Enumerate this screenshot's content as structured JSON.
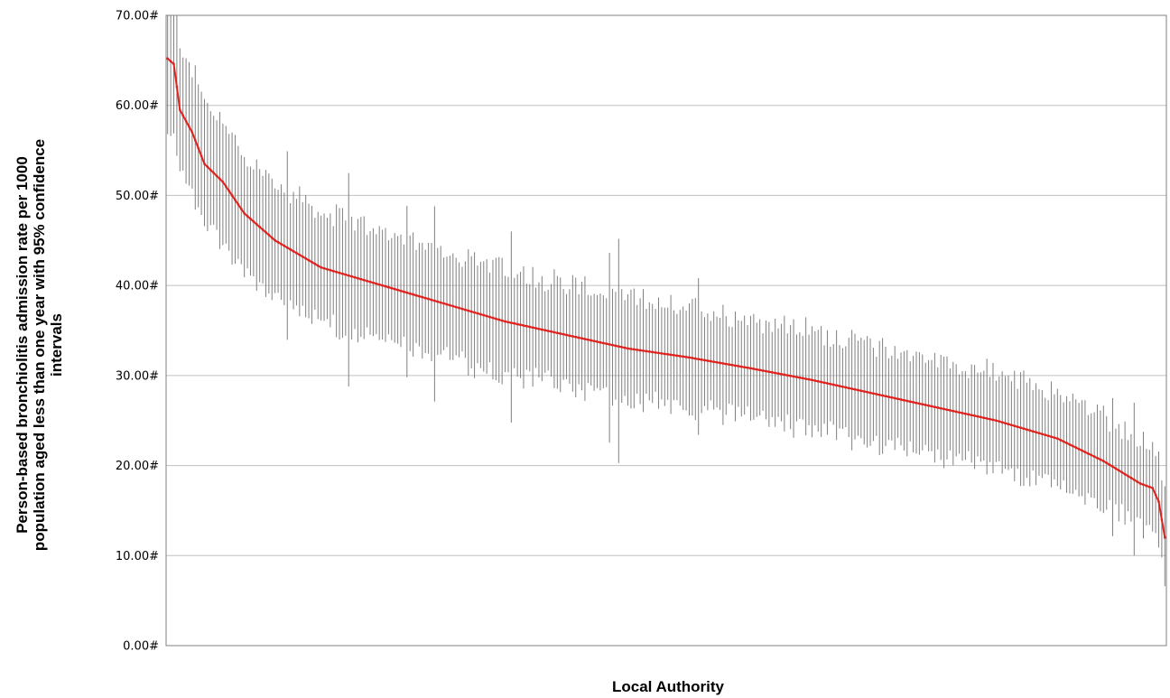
{
  "chart_data": {
    "type": "line",
    "title": "",
    "xlabel": "Local Authority",
    "ylabel_lines": [
      "Person-based bronchiolitis admission rate per 1000",
      "population aged less than one year with 95% confidence",
      "intervals"
    ],
    "ylim": [
      0,
      70
    ],
    "y_ticks": [
      {
        "value": 0,
        "label": "0.00#"
      },
      {
        "value": 10,
        "label": "10.00#"
      },
      {
        "value": 20,
        "label": "20.00#"
      },
      {
        "value": 30,
        "label": "30.00#"
      },
      {
        "value": 40,
        "label": "40.00#"
      },
      {
        "value": 50,
        "label": "50.00#"
      },
      {
        "value": 60,
        "label": "60.00#"
      },
      {
        "value": 70,
        "label": "70.00#"
      }
    ],
    "grid": true,
    "legend": "none",
    "x_tick_labels": "none",
    "n_points": 326,
    "rate_profile_knots": [
      [
        0,
        65.2
      ],
      [
        2,
        64.6
      ],
      [
        4,
        59.5
      ],
      [
        8,
        57.0
      ],
      [
        12,
        53.5
      ],
      [
        18,
        51.5
      ],
      [
        25,
        48.0
      ],
      [
        35,
        45.0
      ],
      [
        50,
        42.0
      ],
      [
        70,
        40.0
      ],
      [
        90,
        38.0
      ],
      [
        110,
        36.0
      ],
      [
        130,
        34.5
      ],
      [
        150,
        33.0
      ],
      [
        170,
        32.0
      ],
      [
        190,
        30.8
      ],
      [
        210,
        29.5
      ],
      [
        230,
        28.0
      ],
      [
        250,
        26.5
      ],
      [
        270,
        25.0
      ],
      [
        290,
        23.0
      ],
      [
        305,
        20.5
      ],
      [
        317,
        18.0
      ],
      [
        321,
        17.5
      ],
      [
        323,
        16.0
      ],
      [
        325,
        12.0
      ]
    ],
    "series": [
      {
        "name": "",
        "kind": "rate",
        "color": "#e0211d"
      },
      {
        "name": "",
        "kind": "95% confidence interval",
        "color": "#7f7f7f"
      }
    ],
    "colors": {
      "gridline": "#c0c0c0",
      "plot_border": "#808080",
      "rate_line": "#e0211d",
      "error_bar": "#7f7f7f"
    }
  }
}
